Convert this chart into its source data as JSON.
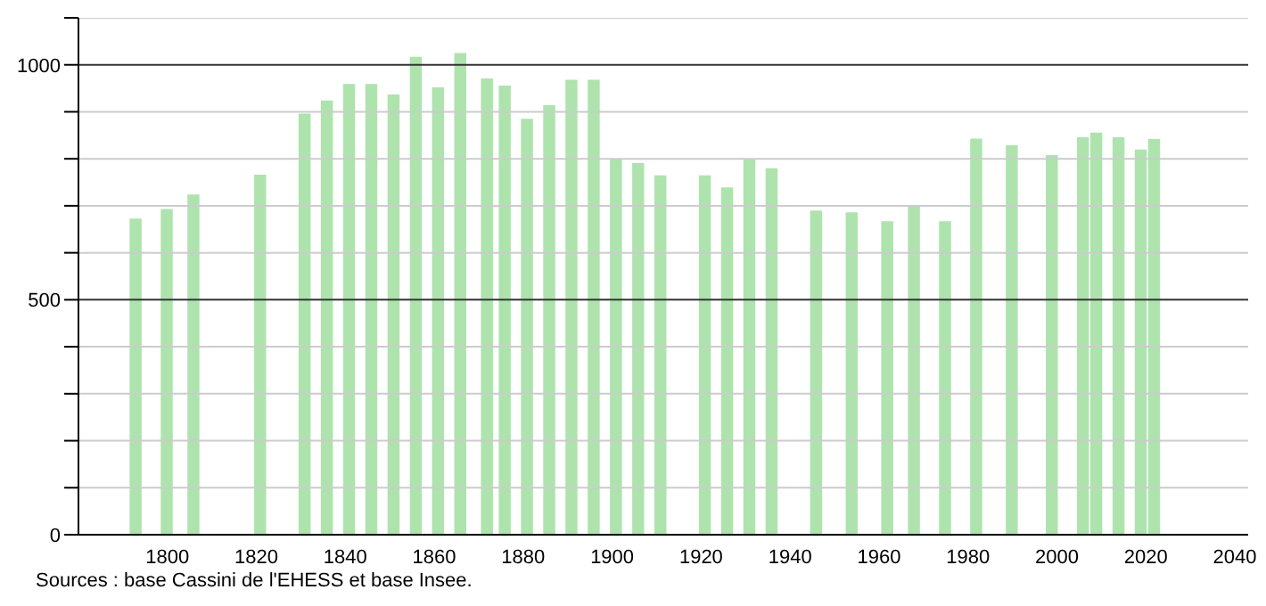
{
  "chart_data": {
    "type": "bar",
    "x": [
      1793,
      1800,
      1806,
      1821,
      1831,
      1836,
      1841,
      1846,
      1851,
      1856,
      1861,
      1866,
      1872,
      1876,
      1881,
      1886,
      1891,
      1896,
      1901,
      1906,
      1911,
      1921,
      1926,
      1931,
      1936,
      1946,
      1954,
      1962,
      1968,
      1975,
      1982,
      1990,
      1999,
      2006,
      2009,
      2014,
      2019,
      2022
    ],
    "values": [
      673,
      693,
      724,
      766,
      896,
      924,
      959,
      959,
      937,
      1017,
      952,
      1025,
      971,
      956,
      885,
      914,
      968,
      968,
      800,
      791,
      765,
      765,
      739,
      800,
      780,
      690,
      686,
      667,
      701,
      667,
      843,
      829,
      808,
      846,
      856,
      846,
      820,
      842
    ],
    "color": "#aee3ae",
    "xlim": [
      1780,
      2043
    ],
    "xticks": [
      1800,
      1820,
      1840,
      1860,
      1880,
      1900,
      1920,
      1940,
      1960,
      1980,
      2000,
      2020,
      2040
    ],
    "ylim": [
      0,
      1100
    ],
    "yticks": [
      0,
      {
        "value": 100,
        "label": null
      },
      {
        "value": 200,
        "label": null
      },
      {
        "value": 300,
        "label": null
      },
      {
        "value": 400,
        "label": null
      },
      500,
      {
        "value": 600,
        "label": null
      },
      {
        "value": 700,
        "label": null
      },
      {
        "value": 800,
        "label": null
      },
      {
        "value": 900,
        "label": null
      },
      1000,
      {
        "value": 1100,
        "label": null
      }
    ],
    "grid": "y",
    "annotations": [
      "Sources : base Cassini de l'EHESS et base Insee."
    ]
  }
}
